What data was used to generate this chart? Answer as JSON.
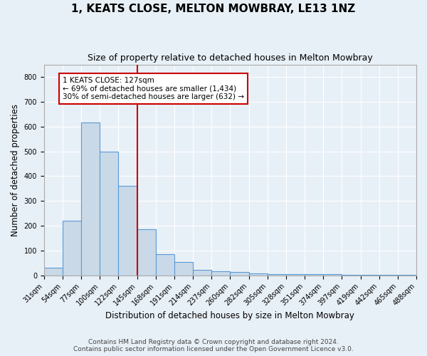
{
  "title": "1, KEATS CLOSE, MELTON MOWBRAY, LE13 1NZ",
  "subtitle": "Size of property relative to detached houses in Melton Mowbray",
  "xlabel": "Distribution of detached houses by size in Melton Mowbray",
  "ylabel": "Number of detached properties",
  "bar_values": [
    32,
    220,
    615,
    500,
    360,
    185,
    85,
    55,
    22,
    18,
    13,
    7,
    5,
    5,
    4,
    4,
    3,
    3,
    2,
    2
  ],
  "bar_labels": [
    "31sqm",
    "54sqm",
    "77sqm",
    "100sqm",
    "122sqm",
    "145sqm",
    "168sqm",
    "191sqm",
    "214sqm",
    "237sqm",
    "260sqm",
    "282sqm",
    "305sqm",
    "328sqm",
    "351sqm",
    "374sqm",
    "397sqm",
    "419sqm",
    "442sqm",
    "465sqm",
    "488sqm"
  ],
  "bar_color": "#c9d9e8",
  "bar_edge_color": "#5b9bd5",
  "vline_x": 4.5,
  "vline_color": "#cc0000",
  "annotation_text": "1 KEATS CLOSE: 127sqm\n← 69% of detached houses are smaller (1,434)\n30% of semi-detached houses are larger (632) →",
  "annotation_box_color": "#ffffff",
  "annotation_box_edge_color": "#cc0000",
  "ylim": [
    0,
    850
  ],
  "yticks": [
    0,
    100,
    200,
    300,
    400,
    500,
    600,
    700,
    800
  ],
  "footer_text": "Contains HM Land Registry data © Crown copyright and database right 2024.\nContains public sector information licensed under the Open Government Licence v3.0.",
  "background_color": "#e8f0f7",
  "plot_background_color": "#e8f0f7",
  "grid_color": "#ffffff",
  "title_fontsize": 11,
  "subtitle_fontsize": 9,
  "xlabel_fontsize": 8.5,
  "ylabel_fontsize": 8.5,
  "annotation_fontsize": 7.5,
  "tick_fontsize": 7,
  "footer_fontsize": 6.5
}
